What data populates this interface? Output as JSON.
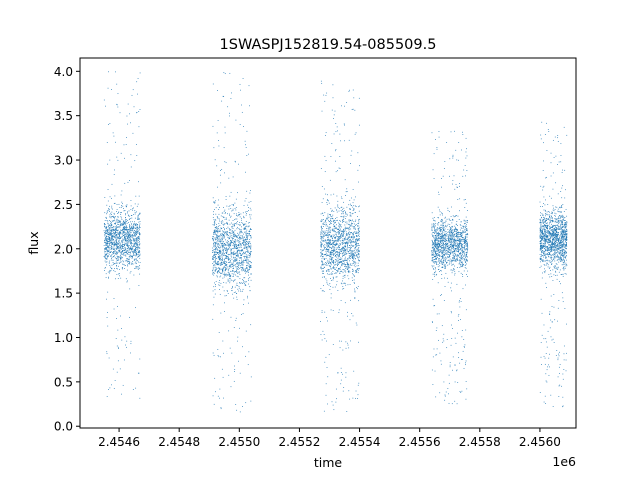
{
  "chart_data": {
    "type": "scatter",
    "title": "1SWASPJ152819.54-085509.5",
    "xlabel": "time",
    "ylabel": "flux",
    "x_offset_label": "1e6",
    "xlim": [
      2.45447,
      2.45612
    ],
    "ylim": [
      -0.02,
      4.15
    ],
    "xticks": [
      2.4546,
      2.4548,
      2.455,
      2.4552,
      2.4554,
      2.4556,
      2.4558,
      2.456
    ],
    "xtick_labels": [
      "2.4546",
      "2.4548",
      "2.4550",
      "2.4552",
      "2.4554",
      "2.4556",
      "2.4558",
      "2.4560"
    ],
    "yticks": [
      0.0,
      0.5,
      1.0,
      1.5,
      2.0,
      2.5,
      3.0,
      3.5,
      4.0
    ],
    "ytick_labels": [
      "0.0",
      "0.5",
      "1.0",
      "1.5",
      "2.0",
      "2.5",
      "3.0",
      "3.5",
      "4.0"
    ],
    "marker_color": "#1f77b4",
    "grid": false,
    "series": [
      {
        "segments": [
          {
            "x_range": [
              2.45455,
              2.45467
            ],
            "y_core": [
              1.5,
              2.7
            ],
            "y_range": [
              0.3,
              4.0
            ],
            "center": 2.1
          },
          {
            "x_range": [
              2.45491,
              2.45504
            ],
            "y_core": [
              1.2,
              2.7
            ],
            "y_range": [
              0.15,
              4.0
            ],
            "center": 2.0
          },
          {
            "x_range": [
              2.45527,
              2.4554
            ],
            "y_core": [
              1.3,
              2.8
            ],
            "y_range": [
              0.15,
              3.9
            ],
            "center": 2.05
          },
          {
            "x_range": [
              2.45564,
              2.45576
            ],
            "y_core": [
              1.5,
              2.5
            ],
            "y_range": [
              0.2,
              3.35
            ],
            "center": 2.05
          },
          {
            "x_range": [
              2.456,
              2.45609
            ],
            "y_core": [
              1.5,
              2.6
            ],
            "y_range": [
              0.2,
              3.45
            ],
            "center": 2.1
          }
        ]
      }
    ]
  }
}
